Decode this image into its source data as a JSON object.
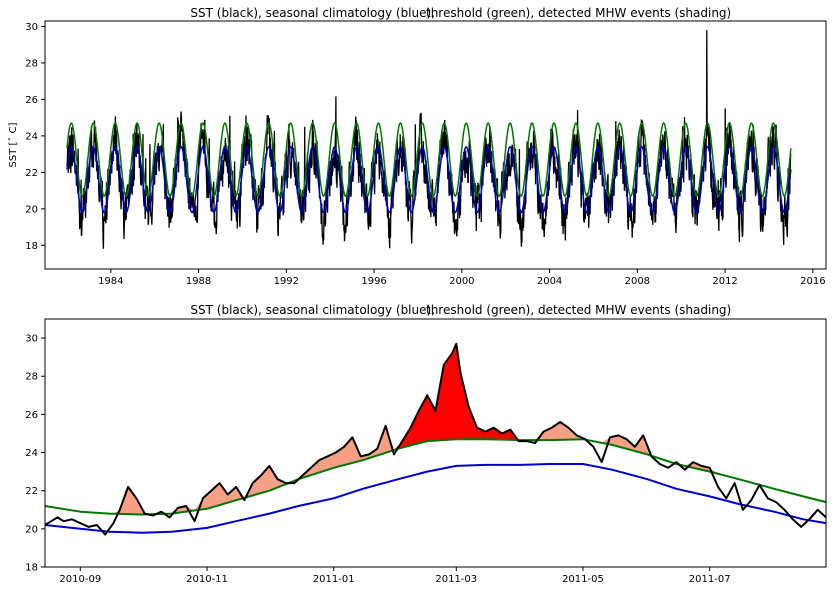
{
  "chart_data": [
    {
      "type": "line",
      "title_left": "SST (black), seasonal climatology (blue),",
      "title_right": "threshold (green), detected MHW events (shading)",
      "ylabel": "SST [$^\\circ$C]",
      "ylabel_display": "SST [ˆ C]",
      "xlim": [
        1981.0,
        2016.6
      ],
      "ylim": [
        16.7,
        30.3
      ],
      "xticks": [
        1984,
        1988,
        1992,
        1996,
        2000,
        2004,
        2008,
        2012,
        2016
      ],
      "yticks": [
        18,
        20,
        22,
        24,
        26,
        28,
        30
      ],
      "series": [
        {
          "name": "SST",
          "color": "#000000",
          "kind": "sst"
        },
        {
          "name": "climatology",
          "color": "#0000cc",
          "kind": "clim",
          "min": 19.8,
          "max": 23.4
        },
        {
          "name": "threshold",
          "color": "#007700",
          "kind": "thresh",
          "min": 20.7,
          "max": 24.7
        }
      ],
      "data_start": 1982.0,
      "data_end": 2015.0,
      "sst_min": 17.1,
      "sst_max": 29.8,
      "peak_year": 2011.17
    },
    {
      "type": "line",
      "title_left": "SST (black), seasonal climatology (blue),",
      "title_right": "threshold (green), detected MHW events (shading)",
      "xlim": [
        "2010-08-15",
        "2011-08-26"
      ],
      "ylim": [
        18,
        31
      ],
      "xticks": [
        "2010-09",
        "2010-11",
        "2011-01",
        "2011-03",
        "2011-05",
        "2011-07"
      ],
      "yticks": [
        18,
        20,
        22,
        24,
        26,
        28,
        30
      ],
      "series": [
        {
          "name": "climatology",
          "color": "#0000cc",
          "x": [
            "2010-08-15",
            "2010-09-01",
            "2010-09-15",
            "2010-10-01",
            "2010-10-15",
            "2010-11-01",
            "2010-11-15",
            "2010-12-01",
            "2010-12-15",
            "2011-01-01",
            "2011-01-15",
            "2011-02-01",
            "2011-02-15",
            "2011-03-01",
            "2011-03-15",
            "2011-04-01",
            "2011-04-15",
            "2011-05-01",
            "2011-05-15",
            "2011-06-01",
            "2011-06-15",
            "2011-07-01",
            "2011-07-15",
            "2011-08-01",
            "2011-08-15",
            "2011-08-26"
          ],
          "y": [
            20.2,
            20.0,
            19.85,
            19.8,
            19.85,
            20.05,
            20.4,
            20.8,
            21.2,
            21.6,
            22.1,
            22.6,
            23.0,
            23.3,
            23.35,
            23.35,
            23.4,
            23.4,
            23.1,
            22.6,
            22.1,
            21.7,
            21.3,
            20.9,
            20.5,
            20.3
          ]
        },
        {
          "name": "threshold",
          "color": "#007700",
          "x": [
            "2010-08-15",
            "2010-09-01",
            "2010-09-15",
            "2010-10-01",
            "2010-10-15",
            "2010-11-01",
            "2010-11-15",
            "2010-12-01",
            "2010-12-15",
            "2011-01-01",
            "2011-01-15",
            "2011-02-01",
            "2011-02-15",
            "2011-03-01",
            "2011-03-15",
            "2011-04-01",
            "2011-04-15",
            "2011-05-01",
            "2011-05-15",
            "2011-06-01",
            "2011-06-15",
            "2011-07-01",
            "2011-07-15",
            "2011-08-01",
            "2011-08-15",
            "2011-08-26"
          ],
          "y": [
            21.2,
            20.9,
            20.8,
            20.75,
            20.8,
            21.05,
            21.5,
            22.0,
            22.6,
            23.2,
            23.6,
            24.2,
            24.6,
            24.7,
            24.7,
            24.65,
            24.65,
            24.7,
            24.4,
            23.9,
            23.4,
            23.0,
            22.6,
            22.1,
            21.7,
            21.4
          ]
        },
        {
          "name": "SST",
          "color": "#000000",
          "x": [
            "2010-08-15",
            "2010-08-18",
            "2010-08-21",
            "2010-08-24",
            "2010-08-28",
            "2010-09-01",
            "2010-09-05",
            "2010-09-09",
            "2010-09-13",
            "2010-09-17",
            "2010-09-20",
            "2010-09-24",
            "2010-09-28",
            "2010-10-02",
            "2010-10-06",
            "2010-10-10",
            "2010-10-14",
            "2010-10-18",
            "2010-10-22",
            "2010-10-26",
            "2010-10-30",
            "2010-11-03",
            "2010-11-07",
            "2010-11-11",
            "2010-11-15",
            "2010-11-19",
            "2010-11-23",
            "2010-11-27",
            "2010-12-01",
            "2010-12-05",
            "2010-12-09",
            "2010-12-13",
            "2010-12-17",
            "2010-12-21",
            "2010-12-25",
            "2010-12-29",
            "2011-01-02",
            "2011-01-06",
            "2011-01-10",
            "2011-01-14",
            "2011-01-18",
            "2011-01-22",
            "2011-01-26",
            "2011-01-30",
            "2011-02-03",
            "2011-02-07",
            "2011-02-11",
            "2011-02-15",
            "2011-02-19",
            "2011-02-23",
            "2011-02-27",
            "2011-03-01",
            "2011-03-03",
            "2011-03-07",
            "2011-03-11",
            "2011-03-15",
            "2011-03-19",
            "2011-03-23",
            "2011-03-27",
            "2011-03-31",
            "2011-04-04",
            "2011-04-08",
            "2011-04-12",
            "2011-04-16",
            "2011-04-20",
            "2011-04-24",
            "2011-04-28",
            "2011-05-02",
            "2011-05-06",
            "2011-05-10",
            "2011-05-14",
            "2011-05-18",
            "2011-05-22",
            "2011-05-26",
            "2011-05-30",
            "2011-06-03",
            "2011-06-07",
            "2011-06-11",
            "2011-06-15",
            "2011-06-19",
            "2011-06-23",
            "2011-06-27",
            "2011-07-01",
            "2011-07-05",
            "2011-07-09",
            "2011-07-13",
            "2011-07-17",
            "2011-07-21",
            "2011-07-25",
            "2011-07-29",
            "2011-08-02",
            "2011-08-06",
            "2011-08-10",
            "2011-08-14",
            "2011-08-18",
            "2011-08-22",
            "2011-08-26"
          ],
          "y": [
            20.2,
            20.4,
            20.6,
            20.4,
            20.5,
            20.3,
            20.1,
            20.2,
            19.7,
            20.3,
            21.0,
            22.2,
            21.6,
            20.8,
            20.7,
            20.9,
            20.6,
            21.1,
            21.2,
            20.4,
            21.6,
            22.0,
            22.4,
            21.8,
            22.2,
            21.5,
            22.4,
            22.8,
            23.3,
            22.6,
            22.4,
            22.4,
            22.8,
            23.2,
            23.6,
            23.8,
            24.0,
            24.3,
            24.8,
            23.8,
            23.9,
            24.2,
            25.4,
            23.9,
            24.6,
            25.3,
            26.2,
            27.0,
            26.2,
            28.6,
            29.2,
            29.7,
            28.2,
            26.4,
            25.3,
            25.1,
            25.3,
            25.0,
            25.2,
            24.6,
            24.6,
            24.5,
            25.1,
            25.3,
            25.6,
            25.3,
            24.9,
            24.7,
            24.3,
            23.5,
            24.8,
            24.9,
            24.7,
            24.3,
            24.9,
            23.8,
            23.4,
            23.2,
            23.5,
            23.1,
            23.5,
            23.3,
            23.2,
            22.2,
            21.6,
            22.4,
            21.0,
            21.5,
            22.3,
            21.6,
            21.4,
            21.0,
            20.5,
            20.1,
            20.5,
            21.0,
            20.6
          ]
        }
      ]
    }
  ]
}
